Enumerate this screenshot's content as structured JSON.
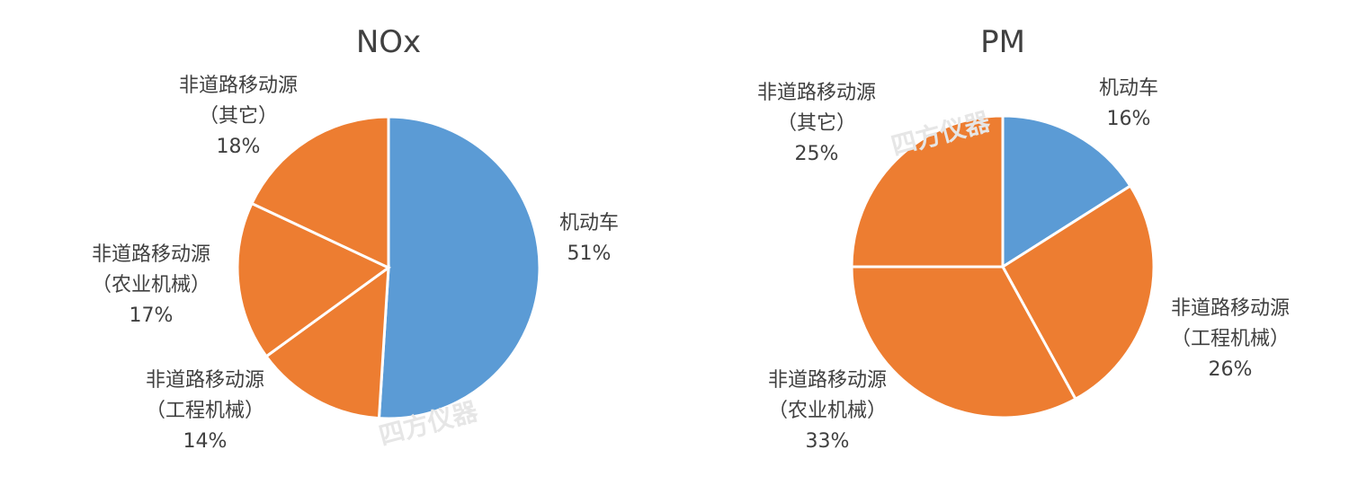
{
  "chart_data": [
    {
      "type": "pie",
      "title": "NOx",
      "slices": [
        {
          "label_lines": [
            "机动车"
          ],
          "value": 51,
          "percent_label": "51%",
          "color": "#5b9bd5"
        },
        {
          "label_lines": [
            "非道路移动源",
            "（工程机械）"
          ],
          "value": 14,
          "percent_label": "14%",
          "color": "#ed7d31"
        },
        {
          "label_lines": [
            "非道路移动源",
            "（农业机械）"
          ],
          "value": 17,
          "percent_label": "17%",
          "color": "#ed7d31"
        },
        {
          "label_lines": [
            "非道路移动源",
            "（其它）"
          ],
          "value": 18,
          "percent_label": "18%",
          "color": "#ed7d31"
        }
      ]
    },
    {
      "type": "pie",
      "title": "PM",
      "slices": [
        {
          "label_lines": [
            "机动车"
          ],
          "value": 16,
          "percent_label": "16%",
          "color": "#5b9bd5"
        },
        {
          "label_lines": [
            "非道路移动源",
            "（工程机械）"
          ],
          "value": 26,
          "percent_label": "26%",
          "color": "#ed7d31"
        },
        {
          "label_lines": [
            "非道路移动源",
            "（农业机械）"
          ],
          "value": 33,
          "percent_label": "33%",
          "color": "#ed7d31"
        },
        {
          "label_lines": [
            "非道路移动源",
            "（其它）"
          ],
          "value": 25,
          "percent_label": "25%",
          "color": "#ed7d31"
        }
      ]
    }
  ],
  "watermark": "四方仪器",
  "colors": {
    "slice_border": "#ffffff",
    "text": "#404040"
  }
}
